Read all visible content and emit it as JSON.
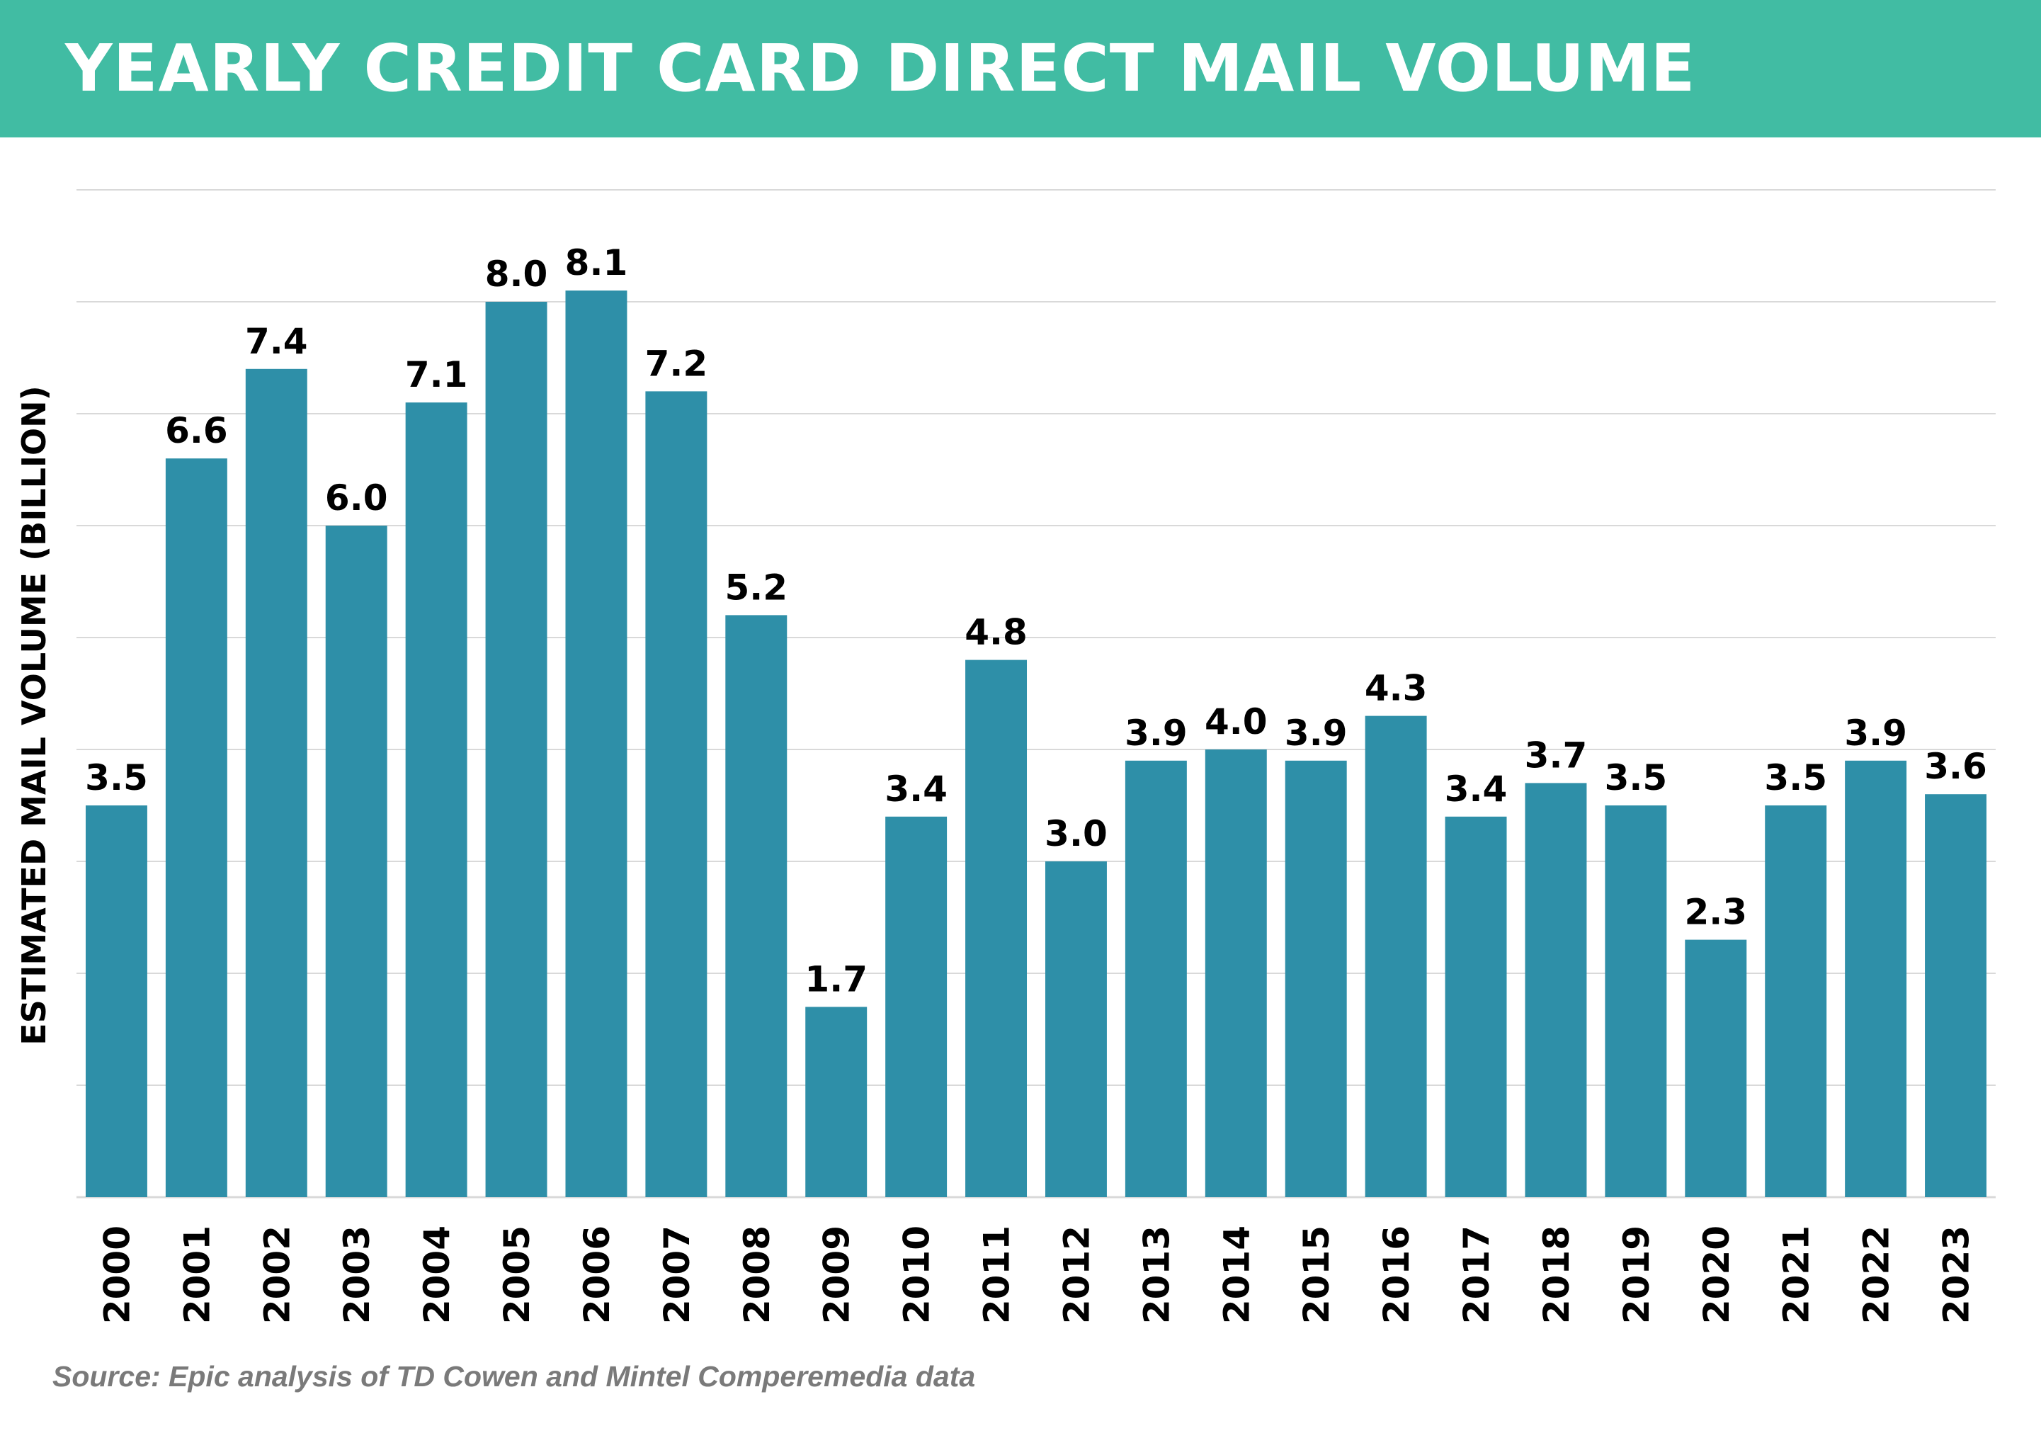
{
  "title": "YEARLY CREDIT CARD DIRECT MAIL VOLUME",
  "source": "Source: Epic analysis of TD Cowen and Mintel Comperemedia data",
  "colors": {
    "header": "#41bca3",
    "bar": "#2e8fa8",
    "gridline": "#d9d9d9",
    "source_text": "#7a7a7a"
  },
  "chart_data": {
    "type": "bar",
    "categories": [
      "2000",
      "2001",
      "2002",
      "2003",
      "2004",
      "2005",
      "2006",
      "2007",
      "2008",
      "2009",
      "2010",
      "2011",
      "2012",
      "2013",
      "2014",
      "2015",
      "2016",
      "2017",
      "2018",
      "2019",
      "2020",
      "2021",
      "2022",
      "2023"
    ],
    "values": [
      3.5,
      6.6,
      7.4,
      6.0,
      7.1,
      8.0,
      8.1,
      7.2,
      5.2,
      1.7,
      3.4,
      4.8,
      3.0,
      3.9,
      4.0,
      3.9,
      4.3,
      3.4,
      3.7,
      3.5,
      2.3,
      3.5,
      3.9,
      3.6
    ],
    "value_labels": [
      "3.5",
      "6.6",
      "7.4",
      "6.0",
      "7.1",
      "8.0",
      "8.1",
      "7.2",
      "5.2",
      "1.7",
      "3.4",
      "4.8",
      "3.0",
      "3.9",
      "4.0",
      "3.9",
      "4.3",
      "3.4",
      "3.7",
      "3.5",
      "2.3",
      "3.5",
      "3.9",
      "3.6"
    ],
    "title": "YEARLY CREDIT CARD DIRECT MAIL VOLUME",
    "xlabel": "",
    "ylabel": "ESTIMATED MAIL VOLUME (BILLION)",
    "ylim": [
      0,
      9
    ],
    "y_gridline_step": 1,
    "grid": true,
    "x_tick_rotation": "vertical",
    "legend": "none"
  }
}
